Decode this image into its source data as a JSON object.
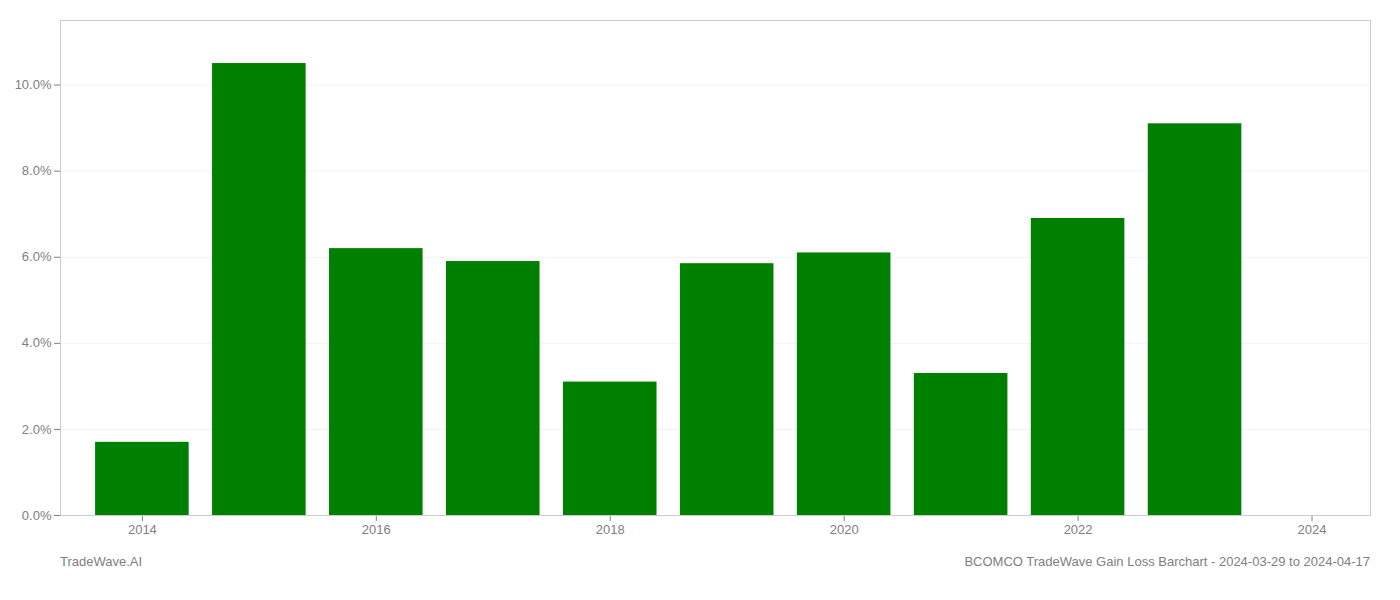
{
  "chart_data": {
    "type": "bar",
    "x": [
      2014,
      2015,
      2016,
      2017,
      2018,
      2019,
      2020,
      2021,
      2022,
      2023
    ],
    "values": [
      0.017,
      0.105,
      0.062,
      0.059,
      0.031,
      0.0585,
      0.061,
      0.033,
      0.069,
      0.091
    ],
    "color": "#008000",
    "xlim": [
      2013.3,
      2024.5
    ],
    "xticks": [
      2014,
      2016,
      2018,
      2020,
      2022,
      2024
    ],
    "ylim": [
      0,
      0.115
    ],
    "yticks": [
      {
        "value": 0.0,
        "label": "0.0%"
      },
      {
        "value": 0.02,
        "label": "2.0%"
      },
      {
        "value": 0.04,
        "label": "4.0%"
      },
      {
        "value": 0.06,
        "label": "6.0%"
      },
      {
        "value": 0.08,
        "label": "8.0%"
      },
      {
        "value": 0.1,
        "label": "10.0%"
      }
    ],
    "grid": true,
    "annotations": [
      "TradeWave.AI",
      "BCOMCO TradeWave Gain Loss Barchart - 2024-03-29 to 2024-04-17"
    ]
  }
}
